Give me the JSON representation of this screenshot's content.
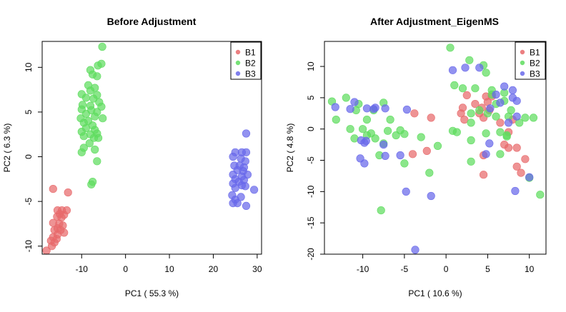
{
  "colors": {
    "B1": "#e8696b",
    "B2": "#5edc5e",
    "B3": "#6868ea"
  },
  "chart_data": [
    {
      "type": "scatter",
      "title": "Before Adjustment",
      "xlabel": "PC1 ( 55.3 %)",
      "ylabel": "PC2 ( 6.3 %)",
      "xlim": [
        -19,
        31
      ],
      "ylim": [
        -10.9,
        12.9
      ],
      "xticks": [
        "-10",
        "0",
        "10",
        "20",
        "30"
      ],
      "yticks": [
        "-10",
        "-5",
        "0",
        "5",
        "10"
      ],
      "xtick_values": [
        -10,
        0,
        10,
        20,
        30
      ],
      "ytick_values": [
        -10,
        -5,
        0,
        5,
        10
      ],
      "legend": {
        "position": "top-right",
        "entries": [
          "B1",
          "B2",
          "B3"
        ]
      },
      "series": [
        {
          "name": "B1",
          "points": [
            [
              -16.5,
              -3.6
            ],
            [
              -13.1,
              -4.0
            ],
            [
              -15.5,
              -6.0
            ],
            [
              -14.5,
              -6.0
            ],
            [
              -13.4,
              -6.0
            ],
            [
              -15.0,
              -6.4
            ],
            [
              -14.0,
              -6.5
            ],
            [
              -15.6,
              -6.7
            ],
            [
              -14.6,
              -6.8
            ],
            [
              -16.5,
              -7.4
            ],
            [
              -15.1,
              -7.5
            ],
            [
              -14.3,
              -7.7
            ],
            [
              -15.5,
              -8.0
            ],
            [
              -16.2,
              -8.2
            ],
            [
              -14.8,
              -8.2
            ],
            [
              -14.0,
              -8.5
            ],
            [
              -15.5,
              -8.7
            ],
            [
              -16.5,
              -9.0
            ],
            [
              -15.7,
              -9.2
            ],
            [
              -17.0,
              -9.4
            ],
            [
              -16.2,
              -9.6
            ],
            [
              -16.8,
              -10.0
            ],
            [
              -18.0,
              -10.5
            ]
          ]
        },
        {
          "name": "B2",
          "points": [
            [
              -5.3,
              12.3
            ],
            [
              -5.5,
              10.4
            ],
            [
              -6.3,
              10.2
            ],
            [
              -8.0,
              9.7
            ],
            [
              -7.5,
              9.2
            ],
            [
              -6.5,
              9.0
            ],
            [
              -8.5,
              8.0
            ],
            [
              -7.0,
              7.7
            ],
            [
              -8.0,
              7.4
            ],
            [
              -10.0,
              7.0
            ],
            [
              -6.5,
              6.9
            ],
            [
              -9.0,
              6.6
            ],
            [
              -7.3,
              6.5
            ],
            [
              -6.0,
              6.1
            ],
            [
              -9.8,
              5.8
            ],
            [
              -8.0,
              5.7
            ],
            [
              -5.5,
              5.6
            ],
            [
              -10.0,
              5.3
            ],
            [
              -7.8,
              5.2
            ],
            [
              -6.5,
              5.0
            ],
            [
              -9.0,
              4.8
            ],
            [
              -7.0,
              4.5
            ],
            [
              -10.2,
              4.3
            ],
            [
              -5.2,
              4.3
            ],
            [
              -8.5,
              4.0
            ],
            [
              -9.5,
              3.8
            ],
            [
              -7.5,
              3.5
            ],
            [
              -9.0,
              3.2
            ],
            [
              -7.0,
              3.0
            ],
            [
              -10.0,
              2.8
            ],
            [
              -6.5,
              2.6
            ],
            [
              -8.0,
              2.5
            ],
            [
              -9.5,
              2.3
            ],
            [
              -7.2,
              2.1
            ],
            [
              -6.2,
              2.1
            ],
            [
              -8.2,
              1.5
            ],
            [
              -9.5,
              1.0
            ],
            [
              -7.0,
              0.8
            ],
            [
              -10.0,
              0.5
            ],
            [
              -6.5,
              -0.5
            ],
            [
              -7.5,
              -2.8
            ],
            [
              -7.8,
              -3.1
            ]
          ]
        },
        {
          "name": "B3",
          "points": [
            [
              27.5,
              2.6
            ],
            [
              25.0,
              0.5
            ],
            [
              26.5,
              0.5
            ],
            [
              27.5,
              0.5
            ],
            [
              24.5,
              0.0
            ],
            [
              26.3,
              -0.2
            ],
            [
              27.3,
              -0.5
            ],
            [
              24.8,
              -1.0
            ],
            [
              26.0,
              -1.0
            ],
            [
              27.0,
              -1.2
            ],
            [
              25.5,
              -1.5
            ],
            [
              26.8,
              -1.6
            ],
            [
              24.5,
              -2.0
            ],
            [
              26.5,
              -2.2
            ],
            [
              27.8,
              -2.0
            ],
            [
              25.0,
              -2.5
            ],
            [
              27.0,
              -2.6
            ],
            [
              25.8,
              -2.8
            ],
            [
              24.5,
              -3.0
            ],
            [
              26.5,
              -3.2
            ],
            [
              27.3,
              -3.3
            ],
            [
              25.0,
              -3.5
            ],
            [
              29.3,
              -3.7
            ],
            [
              24.3,
              -4.3
            ],
            [
              26.3,
              -4.5
            ],
            [
              25.0,
              -4.8
            ],
            [
              25.5,
              -5.2
            ],
            [
              24.5,
              -5.2
            ],
            [
              27.5,
              -5.5
            ]
          ]
        }
      ]
    },
    {
      "type": "scatter",
      "title": "After Adjustment_EigenMS",
      "xlabel": "PC1 ( 10.6 %)",
      "ylabel": "PC2 ( 4.8 %)",
      "xlim": [
        -14.6,
        12.0
      ],
      "ylim": [
        -20.0,
        14.0
      ],
      "xticks": [
        "-10",
        "-5",
        "0",
        "5",
        "10"
      ],
      "yticks": [
        "-20",
        "-15",
        "-10",
        "-5",
        "0",
        "5",
        "10"
      ],
      "xtick_values": [
        -10,
        -5,
        0,
        5,
        10
      ],
      "ytick_values": [
        -20,
        -15,
        -10,
        -5,
        0,
        5,
        10
      ],
      "legend": {
        "position": "top-right",
        "entries": [
          "B1",
          "B2",
          "B3"
        ]
      },
      "series": [
        {
          "name": "B1",
          "points": [
            [
              2.5,
              5.4
            ],
            [
              4.8,
              5.2
            ],
            [
              5.5,
              5.2
            ],
            [
              3.5,
              4.0
            ],
            [
              5.0,
              4.3
            ],
            [
              2.0,
              3.4
            ],
            [
              4.3,
              3.4
            ],
            [
              5.2,
              3.0
            ],
            [
              1.8,
              2.5
            ],
            [
              4.0,
              2.5
            ],
            [
              -1.8,
              1.8
            ],
            [
              -3.8,
              2.5
            ],
            [
              2.2,
              1.5
            ],
            [
              4.5,
              1.8
            ],
            [
              8.0,
              1.5
            ],
            [
              6.5,
              1.0
            ],
            [
              7.5,
              -0.5
            ],
            [
              -4.0,
              -4.0
            ],
            [
              -2.3,
              -3.5
            ],
            [
              7.0,
              -2.5
            ],
            [
              7.5,
              -3.0
            ],
            [
              8.5,
              -3.0
            ],
            [
              9.5,
              -4.8
            ],
            [
              4.5,
              -4.2
            ],
            [
              8.5,
              -6.0
            ],
            [
              4.5,
              -7.3
            ],
            [
              9.0,
              -7.0
            ]
          ]
        },
        {
          "name": "B2",
          "points": [
            [
              0.5,
              13.0
            ],
            [
              -13.7,
              4.4
            ],
            [
              -12.0,
              5.0
            ],
            [
              -10.5,
              4.0
            ],
            [
              -10.8,
              3.0
            ],
            [
              -13.2,
              1.5
            ],
            [
              -8.7,
              3.0
            ],
            [
              -7.5,
              4.2
            ],
            [
              -9.5,
              1.5
            ],
            [
              -6.7,
              1.5
            ],
            [
              -11.5,
              0.0
            ],
            [
              -10.0,
              0.0
            ],
            [
              -9.0,
              -0.7
            ],
            [
              -7.0,
              -0.3
            ],
            [
              -5.5,
              -0.2
            ],
            [
              -11.0,
              -1.5
            ],
            [
              -9.5,
              -1.0
            ],
            [
              -8.5,
              -1.5
            ],
            [
              -6.0,
              -1.0
            ],
            [
              -5.0,
              -0.8
            ],
            [
              -7.5,
              -2.3
            ],
            [
              -3.0,
              -1.3
            ],
            [
              -1.0,
              -2.7
            ],
            [
              -8.0,
              -4.2
            ],
            [
              -5.0,
              -5.5
            ],
            [
              -2.0,
              -7.0
            ],
            [
              -7.8,
              -13.0
            ],
            [
              2.8,
              11.0
            ],
            [
              4.5,
              10.2
            ],
            [
              4.8,
              9.0
            ],
            [
              1.0,
              7.0
            ],
            [
              2.0,
              6.5
            ],
            [
              3.5,
              6.5
            ],
            [
              5.5,
              6.2
            ],
            [
              7.0,
              5.8
            ],
            [
              5.5,
              5.5
            ],
            [
              7.0,
              4.5
            ],
            [
              6.0,
              4.0
            ],
            [
              7.8,
              3.0
            ],
            [
              3.0,
              2.5
            ],
            [
              4.0,
              3.0
            ],
            [
              5.0,
              2.5
            ],
            [
              6.0,
              2.0
            ],
            [
              7.5,
              2.0
            ],
            [
              9.5,
              1.8
            ],
            [
              10.5,
              1.8
            ],
            [
              3.0,
              1.0
            ],
            [
              8.8,
              1.0
            ],
            [
              0.8,
              -0.3
            ],
            [
              1.3,
              -0.5
            ],
            [
              4.8,
              -0.7
            ],
            [
              6.5,
              -0.5
            ],
            [
              7.3,
              -1.2
            ],
            [
              3.0,
              -1.8
            ],
            [
              6.5,
              -4.0
            ],
            [
              3.0,
              -5.2
            ],
            [
              7.3,
              -1.0
            ],
            [
              10.0,
              -7.8
            ],
            [
              11.3,
              -10.5
            ]
          ]
        },
        {
          "name": "B3",
          "points": [
            [
              0.8,
              9.4
            ],
            [
              2.3,
              9.8
            ],
            [
              4.0,
              9.8
            ],
            [
              7.0,
              6.8
            ],
            [
              8.0,
              6.2
            ],
            [
              6.0,
              5.5
            ],
            [
              8.0,
              5.0
            ],
            [
              8.5,
              4.5
            ],
            [
              -13.3,
              3.5
            ],
            [
              -11.0,
              4.3
            ],
            [
              -9.5,
              3.3
            ],
            [
              -8.7,
              3.2
            ],
            [
              -8.5,
              3.4
            ],
            [
              -7.3,
              3.3
            ],
            [
              -4.7,
              3.1
            ],
            [
              -11.5,
              3.2
            ],
            [
              6.5,
              4.2
            ],
            [
              5.3,
              3.3
            ],
            [
              7.5,
              1.0
            ],
            [
              8.5,
              2.0
            ],
            [
              -10.2,
              -1.8
            ],
            [
              -9.8,
              -2.2
            ],
            [
              -9.6,
              -1.9
            ],
            [
              -7.5,
              -2.5
            ],
            [
              -5.5,
              -4.2
            ],
            [
              -7.3,
              -4.3
            ],
            [
              -10.3,
              -4.7
            ],
            [
              -9.8,
              -5.5
            ],
            [
              -4.8,
              -10.0
            ],
            [
              -1.8,
              -10.7
            ],
            [
              -3.7,
              -19.3
            ],
            [
              5.2,
              -2.3
            ],
            [
              4.8,
              -4.0
            ],
            [
              8.3,
              -9.9
            ],
            [
              10.0,
              -7.7
            ]
          ]
        }
      ]
    }
  ]
}
